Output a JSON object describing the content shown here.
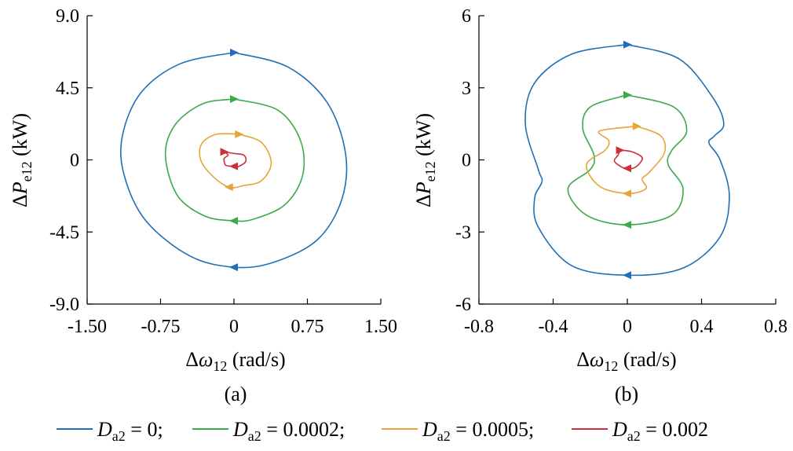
{
  "figure": {
    "legend": {
      "placement": "bottom",
      "items": [
        {
          "var": "D",
          "sub": "a2",
          "text": " = 0;",
          "color": "#1f6fb5"
        },
        {
          "var": "D",
          "sub": "a2",
          "text": " = 0.0002;",
          "color": "#3aaa4a"
        },
        {
          "var": "D",
          "sub": "a2",
          "text": " = 0.0005;",
          "color": "#e6a53a"
        },
        {
          "var": "D",
          "sub": "a2",
          "text": " = 0.002",
          "color": "#c8303a"
        }
      ]
    }
  },
  "chart_data": [
    {
      "type": "line",
      "panel_label": "(a)",
      "xlabel": {
        "prefix": "Δ",
        "var": "ω",
        "sub": "12",
        "suffix": " (rad/s)"
      },
      "ylabel": {
        "prefix": "Δ",
        "var": "P",
        "sub": "e12",
        "suffix": " (kW)"
      },
      "xlim": [
        -1.5,
        1.5
      ],
      "ylim": [
        -9.0,
        9.0
      ],
      "xticks": [
        -1.5,
        -0.75,
        0,
        0.75,
        1.5
      ],
      "xtick_labels": [
        "-1.50",
        "-0.75",
        "0",
        "0.75",
        "1.50"
      ],
      "yticks": [
        9.0,
        4.5,
        0,
        -4.5,
        -9.0
      ],
      "ytick_labels": [
        "9.0",
        "4.5",
        "0",
        "-4.5",
        "-9.0"
      ],
      "grid": false,
      "series": [
        {
          "name": "D_a2 = 0",
          "color": "#1f6fb5",
          "x": [
            0.0,
            0.55,
            0.95,
            1.14,
            1.1,
            0.85,
            0.4,
            0.0,
            -0.45,
            -0.9,
            -1.12,
            -1.14,
            -0.95,
            -0.55,
            0.0
          ],
          "y": [
            6.7,
            5.8,
            3.6,
            0.4,
            -2.5,
            -5.0,
            -6.4,
            -6.7,
            -6.0,
            -3.8,
            -1.0,
            1.5,
            4.2,
            6.0,
            6.7
          ]
        },
        {
          "name": "D_a2 = 0.0002",
          "color": "#3aaa4a",
          "x": [
            0.0,
            0.45,
            0.68,
            0.7,
            0.52,
            0.2,
            0.0,
            -0.3,
            -0.58,
            -0.7,
            -0.6,
            -0.32,
            0.0
          ],
          "y": [
            3.8,
            3.1,
            1.2,
            -1.0,
            -2.8,
            -3.7,
            -3.8,
            -3.5,
            -2.2,
            0.3,
            2.2,
            3.5,
            3.8
          ]
        },
        {
          "name": "D_a2 = 0.0005",
          "color": "#e6a53a",
          "x": [
            0.05,
            0.28,
            0.38,
            0.28,
            0.1,
            -0.05,
            -0.22,
            -0.34,
            -0.33,
            -0.18,
            0.05
          ],
          "y": [
            1.6,
            1.1,
            -0.2,
            -1.3,
            -1.6,
            -1.7,
            -1.0,
            0.0,
            1.0,
            1.6,
            1.6
          ]
        },
        {
          "name": "D_a2 = 0.002",
          "color": "#c8303a",
          "x": [
            -0.1,
            0.0,
            0.1,
            0.12,
            0.05,
            0.0,
            -0.08,
            -0.1,
            -0.1,
            -0.06,
            -0.1
          ],
          "y": [
            0.5,
            0.4,
            0.3,
            -0.1,
            -0.4,
            -0.4,
            -0.35,
            -0.1,
            0.1,
            0.3,
            0.5
          ]
        }
      ]
    },
    {
      "type": "line",
      "panel_label": "(b)",
      "xlabel": {
        "prefix": "Δ",
        "var": "ω",
        "sub": "12",
        "suffix": " (rad/s)"
      },
      "ylabel": {
        "prefix": "Δ",
        "var": "P",
        "sub": "e12",
        "suffix": " (kW)"
      },
      "xlim": [
        -0.8,
        0.8
      ],
      "ylim": [
        -6,
        6
      ],
      "xticks": [
        -0.8,
        -0.4,
        0,
        0.4,
        0.8
      ],
      "xtick_labels": [
        "-0.8",
        "-0.4",
        "0",
        "0.4",
        "0.8"
      ],
      "yticks": [
        6,
        3,
        0,
        -3,
        -6
      ],
      "ytick_labels": [
        "6",
        "3",
        "0",
        "-3",
        "-6"
      ],
      "grid": false,
      "series": [
        {
          "name": "D_a2 = 0",
          "color": "#1f6fb5",
          "x": [
            0.0,
            0.28,
            0.46,
            0.52,
            0.47,
            0.44,
            0.5,
            0.55,
            0.5,
            0.3,
            0.0,
            -0.3,
            -0.48,
            -0.5,
            -0.46,
            -0.48,
            -0.55,
            -0.5,
            -0.3,
            0.0
          ],
          "y": [
            4.8,
            4.2,
            2.6,
            1.5,
            1.0,
            0.7,
            0.0,
            -1.5,
            -3.2,
            -4.5,
            -4.8,
            -4.4,
            -2.8,
            -1.6,
            -0.9,
            -0.4,
            1.5,
            3.2,
            4.4,
            4.8
          ]
        },
        {
          "name": "D_a2 = 0.0002",
          "color": "#3aaa4a",
          "x": [
            0.0,
            0.25,
            0.32,
            0.24,
            0.22,
            0.3,
            0.24,
            0.0,
            -0.22,
            -0.32,
            -0.2,
            -0.18,
            -0.24,
            -0.2,
            0.0
          ],
          "y": [
            2.7,
            2.2,
            1.2,
            0.4,
            -0.2,
            -1.2,
            -2.3,
            -2.7,
            -2.3,
            -1.2,
            -0.4,
            0.2,
            1.3,
            2.2,
            2.7
          ]
        },
        {
          "name": "D_a2 = 0.0005",
          "color": "#e6a53a",
          "x": [
            0.05,
            0.18,
            0.2,
            0.12,
            0.08,
            0.1,
            0.0,
            -0.15,
            -0.22,
            -0.12,
            -0.1,
            -0.15,
            0.05
          ],
          "y": [
            1.4,
            1.0,
            0.3,
            -0.5,
            -0.8,
            -1.2,
            -1.4,
            -1.1,
            -0.2,
            0.4,
            0.8,
            1.2,
            1.4
          ]
        },
        {
          "name": "D_a2 = 0.002",
          "color": "#c8303a",
          "x": [
            -0.04,
            0.02,
            0.08,
            0.06,
            0.03,
            0.0,
            -0.03,
            -0.07,
            -0.05,
            -0.04
          ],
          "y": [
            0.4,
            0.35,
            0.1,
            -0.2,
            -0.35,
            -0.35,
            -0.3,
            -0.05,
            0.2,
            0.4
          ]
        }
      ]
    }
  ]
}
